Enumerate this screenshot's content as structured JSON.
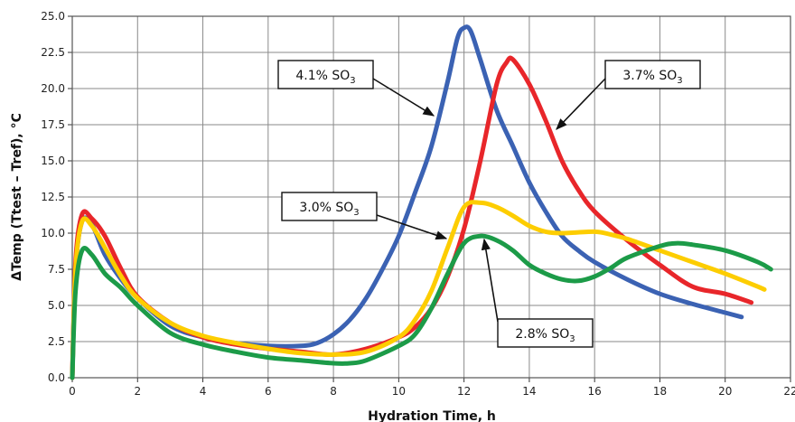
{
  "chart_data": {
    "type": "line",
    "xlabel": "Hydration Time, h",
    "ylabel": "ΔTemp (Ttest – Tref), °C",
    "xlim": [
      0,
      22
    ],
    "ylim": [
      0,
      25
    ],
    "x_ticks": [
      "0",
      "2",
      "4",
      "6",
      "8",
      "10",
      "12",
      "14",
      "16",
      "18",
      "20",
      "22"
    ],
    "y_ticks": [
      "0.0",
      "2.5",
      "5.0",
      "7.5",
      "10.0",
      "12.5",
      "15.0",
      "17.5",
      "20.0",
      "22.5",
      "25.0"
    ],
    "grid": true,
    "series": [
      {
        "name": "4.1% SO3",
        "color": "#3b62b3",
        "points": [
          [
            0,
            0
          ],
          [
            0.1,
            7.5
          ],
          [
            0.3,
            10.8
          ],
          [
            0.6,
            10.6
          ],
          [
            1,
            8.5
          ],
          [
            1.5,
            6.8
          ],
          [
            2,
            5.5
          ],
          [
            3,
            3.6
          ],
          [
            4,
            2.8
          ],
          [
            5,
            2.4
          ],
          [
            6,
            2.2
          ],
          [
            7,
            2.2
          ],
          [
            7.5,
            2.4
          ],
          [
            8,
            3
          ],
          [
            8.5,
            4
          ],
          [
            9,
            5.5
          ],
          [
            9.5,
            7.5
          ],
          [
            10,
            9.8
          ],
          [
            10.5,
            12.8
          ],
          [
            11,
            16
          ],
          [
            11.5,
            20.5
          ],
          [
            11.8,
            23.5
          ],
          [
            12,
            24.2
          ],
          [
            12.2,
            24
          ],
          [
            12.5,
            22
          ],
          [
            13,
            18.5
          ],
          [
            13.5,
            16
          ],
          [
            14,
            13.5
          ],
          [
            14.5,
            11.5
          ],
          [
            15,
            9.8
          ],
          [
            15.5,
            8.8
          ],
          [
            16,
            8
          ],
          [
            17,
            6.8
          ],
          [
            18,
            5.8
          ],
          [
            19,
            5.1
          ],
          [
            20,
            4.5
          ],
          [
            20.5,
            4.2
          ]
        ]
      },
      {
        "name": "3.7% SO3",
        "color": "#e8262a",
        "points": [
          [
            0,
            0
          ],
          [
            0.1,
            8
          ],
          [
            0.3,
            11.3
          ],
          [
            0.6,
            11
          ],
          [
            1,
            9.8
          ],
          [
            1.5,
            7.5
          ],
          [
            2,
            5.6
          ],
          [
            3,
            3.8
          ],
          [
            4,
            2.8
          ],
          [
            5,
            2.3
          ],
          [
            6,
            2
          ],
          [
            7,
            1.8
          ],
          [
            8,
            1.6
          ],
          [
            9,
            2
          ],
          [
            10,
            2.8
          ],
          [
            10.5,
            3.5
          ],
          [
            11,
            4.8
          ],
          [
            11.5,
            7
          ],
          [
            12,
            10.3
          ],
          [
            12.5,
            15
          ],
          [
            13,
            20.3
          ],
          [
            13.3,
            21.8
          ],
          [
            13.5,
            22
          ],
          [
            14,
            20.3
          ],
          [
            14.5,
            17.8
          ],
          [
            15,
            15
          ],
          [
            15.5,
            13
          ],
          [
            16,
            11.5
          ],
          [
            17,
            9.5
          ],
          [
            18,
            7.8
          ],
          [
            19,
            6.3
          ],
          [
            20,
            5.8
          ],
          [
            20.8,
            5.2
          ]
        ]
      },
      {
        "name": "3.0% SO3",
        "color": "#fdcd00",
        "points": [
          [
            0,
            0
          ],
          [
            0.1,
            7.5
          ],
          [
            0.3,
            10.8
          ],
          [
            0.6,
            10.5
          ],
          [
            1,
            9
          ],
          [
            1.5,
            7
          ],
          [
            2,
            5.5
          ],
          [
            3,
            3.8
          ],
          [
            4,
            2.9
          ],
          [
            5,
            2.4
          ],
          [
            6,
            2
          ],
          [
            7,
            1.7
          ],
          [
            8,
            1.6
          ],
          [
            9,
            1.8
          ],
          [
            10,
            2.8
          ],
          [
            10.5,
            4
          ],
          [
            11,
            6
          ],
          [
            11.5,
            9
          ],
          [
            12,
            11.8
          ],
          [
            12.5,
            12.1
          ],
          [
            13,
            11.8
          ],
          [
            13.5,
            11.2
          ],
          [
            14,
            10.5
          ],
          [
            14.5,
            10.1
          ],
          [
            15,
            10
          ],
          [
            16,
            10.1
          ],
          [
            16.5,
            9.9
          ],
          [
            17,
            9.6
          ],
          [
            18,
            8.8
          ],
          [
            19,
            8
          ],
          [
            20,
            7.2
          ],
          [
            21,
            6.3
          ],
          [
            21.2,
            6.1
          ]
        ]
      },
      {
        "name": "2.8% SO3",
        "color": "#1c9b48",
        "points": [
          [
            0,
            0
          ],
          [
            0.1,
            6
          ],
          [
            0.3,
            8.8
          ],
          [
            0.6,
            8.5
          ],
          [
            1,
            7.2
          ],
          [
            1.5,
            6.2
          ],
          [
            2,
            5
          ],
          [
            3,
            3.1
          ],
          [
            4,
            2.3
          ],
          [
            5,
            1.8
          ],
          [
            6,
            1.4
          ],
          [
            7,
            1.2
          ],
          [
            8,
            1
          ],
          [
            8.5,
            1
          ],
          [
            9,
            1.2
          ],
          [
            10,
            2.2
          ],
          [
            10.5,
            3
          ],
          [
            11,
            4.8
          ],
          [
            11.5,
            7.2
          ],
          [
            12,
            9.3
          ],
          [
            12.5,
            9.8
          ],
          [
            13,
            9.5
          ],
          [
            13.5,
            8.8
          ],
          [
            14,
            7.8
          ],
          [
            14.5,
            7.2
          ],
          [
            15,
            6.8
          ],
          [
            15.5,
            6.7
          ],
          [
            16,
            7
          ],
          [
            16.5,
            7.6
          ],
          [
            17,
            8.3
          ],
          [
            18,
            9.1
          ],
          [
            18.5,
            9.3
          ],
          [
            19,
            9.2
          ],
          [
            20,
            8.8
          ],
          [
            21,
            8
          ],
          [
            21.4,
            7.5
          ]
        ]
      }
    ],
    "callouts": [
      {
        "text": "4.1% SO",
        "sub": "3",
        "series": "4.1% SO3"
      },
      {
        "text": "3.7% SO",
        "sub": "3",
        "series": "3.7% SO3"
      },
      {
        "text": "3.0% SO",
        "sub": "3",
        "series": "3.0% SO3"
      },
      {
        "text": "2.8% SO",
        "sub": "3",
        "series": "2.8% SO3"
      }
    ]
  }
}
